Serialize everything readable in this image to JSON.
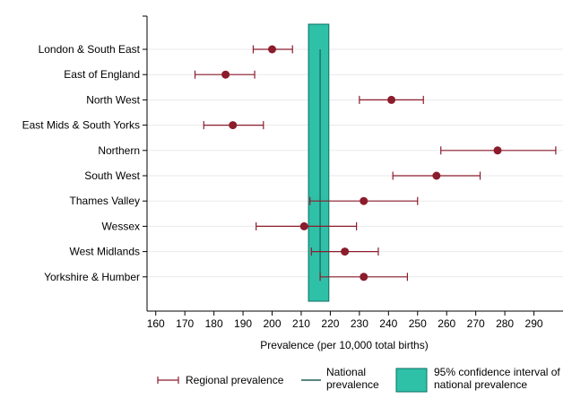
{
  "chart_data": {
    "type": "scatter",
    "xlabel": "Prevalence (per 10,000 total births)",
    "ylabel": "",
    "xlim": [
      157,
      300
    ],
    "xticks": [
      160,
      170,
      180,
      190,
      200,
      210,
      220,
      230,
      240,
      250,
      260,
      270,
      280,
      290
    ],
    "grid": true,
    "colors": {
      "regional": "#8b1c2c",
      "national_line": "#1f5f57",
      "ci_fill": "#2fc0a8",
      "ci_stroke": "#0b6f63",
      "grid": "#e8eaec"
    },
    "regions": [
      {
        "label": "London & South East",
        "estimate": 200,
        "lower": 193.5,
        "upper": 207
      },
      {
        "label": "East of England",
        "estimate": 184,
        "lower": 173.5,
        "upper": 194
      },
      {
        "label": "North West",
        "estimate": 241,
        "lower": 230,
        "upper": 252
      },
      {
        "label": "East Mids & South Yorks",
        "estimate": 186.5,
        "lower": 176.5,
        "upper": 197
      },
      {
        "label": "Northern",
        "estimate": 277.5,
        "lower": 258,
        "upper": 297.5
      },
      {
        "label": "South West",
        "estimate": 256.5,
        "lower": 241.5,
        "upper": 271.5
      },
      {
        "label": "Thames Valley",
        "estimate": 231.5,
        "lower": 213,
        "upper": 250
      },
      {
        "label": "Wessex",
        "estimate": 211,
        "lower": 194.5,
        "upper": 229
      },
      {
        "label": "West Midlands",
        "estimate": 225,
        "lower": 213.5,
        "upper": 236.5
      },
      {
        "label": "Yorkshire & Humber",
        "estimate": 231.5,
        "lower": 216.5,
        "upper": 246.5
      }
    ],
    "national": {
      "value": 216.5,
      "ci_lower": 212.5,
      "ci_upper": 219.5
    },
    "legend": {
      "placement": "bottom",
      "items": [
        {
          "kind": "regional",
          "lines": [
            "Regional prevalence"
          ]
        },
        {
          "kind": "national",
          "lines": [
            "National",
            "prevalence"
          ]
        },
        {
          "kind": "ci",
          "lines": [
            "95% confidence interval of",
            "national prevalence"
          ]
        }
      ]
    }
  }
}
